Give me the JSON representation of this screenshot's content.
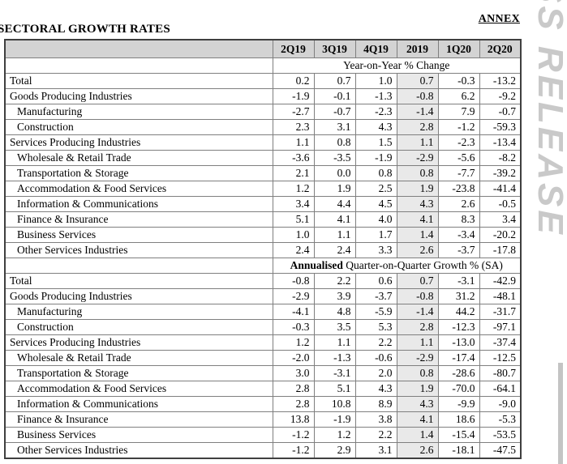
{
  "page": {
    "annex_label": "ANNEX",
    "title": "SECTORAL GROWTH RATES",
    "watermark_text": "SS RELEASE"
  },
  "colors": {
    "header_bg": "#d3d3d3",
    "annual_column_bg": "#e9e9e9",
    "grid_line": "#7f7f7f",
    "outer_border": "#3f3f3f",
    "watermark": "#c9c9c9"
  },
  "table": {
    "corner_label": "",
    "columns": [
      "2Q19",
      "3Q19",
      "4Q19",
      "2019",
      "1Q20",
      "2Q20"
    ],
    "shaded_column": "2019",
    "shaded_column_index": 3,
    "sections": [
      {
        "subtitle": {
          "bold": "",
          "text": "Year-on-Year % Change"
        },
        "rows": [
          {
            "label": "Total",
            "indent": false,
            "values": [
              "0.2",
              "0.7",
              "1.0",
              "0.7",
              "-0.3",
              "-13.2"
            ]
          },
          {
            "label": "Goods Producing Industries",
            "indent": false,
            "values": [
              "-1.9",
              "-0.1",
              "-1.3",
              "-0.8",
              "6.2",
              "-9.2"
            ]
          },
          {
            "label": "Manufacturing",
            "indent": true,
            "values": [
              "-2.7",
              "-0.7",
              "-2.3",
              "-1.4",
              "7.9",
              "-0.7"
            ]
          },
          {
            "label": "Construction",
            "indent": true,
            "values": [
              "2.3",
              "3.1",
              "4.3",
              "2.8",
              "-1.2",
              "-59.3"
            ]
          },
          {
            "label": "Services Producing Industries",
            "indent": false,
            "values": [
              "1.1",
              "0.8",
              "1.5",
              "1.1",
              "-2.3",
              "-13.4"
            ]
          },
          {
            "label": "Wholesale & Retail Trade",
            "indent": true,
            "values": [
              "-3.6",
              "-3.5",
              "-1.9",
              "-2.9",
              "-5.6",
              "-8.2"
            ]
          },
          {
            "label": "Transportation & Storage",
            "indent": true,
            "values": [
              "2.1",
              "0.0",
              "0.8",
              "0.8",
              "-7.7",
              "-39.2"
            ]
          },
          {
            "label": "Accommodation & Food Services",
            "indent": true,
            "values": [
              "1.2",
              "1.9",
              "2.5",
              "1.9",
              "-23.8",
              "-41.4"
            ]
          },
          {
            "label": "Information & Communications",
            "indent": true,
            "values": [
              "3.4",
              "4.4",
              "4.5",
              "4.3",
              "2.6",
              "-0.5"
            ]
          },
          {
            "label": "Finance & Insurance",
            "indent": true,
            "values": [
              "5.1",
              "4.1",
              "4.0",
              "4.1",
              "8.3",
              "3.4"
            ]
          },
          {
            "label": "Business Services",
            "indent": true,
            "values": [
              "1.0",
              "1.1",
              "1.7",
              "1.4",
              "-3.4",
              "-20.2"
            ]
          },
          {
            "label": "Other Services Industries",
            "indent": true,
            "values": [
              "2.4",
              "2.4",
              "3.3",
              "2.6",
              "-3.7",
              "-17.8"
            ]
          }
        ]
      },
      {
        "subtitle": {
          "bold": "Annualised",
          "text": " Quarter-on-Quarter Growth % (SA)"
        },
        "rows": [
          {
            "label": "Total",
            "indent": false,
            "values": [
              "-0.8",
              "2.2",
              "0.6",
              "0.7",
              "-3.1",
              "-42.9"
            ]
          },
          {
            "label": "Goods Producing Industries",
            "indent": false,
            "values": [
              "-2.9",
              "3.9",
              "-3.7",
              "-0.8",
              "31.2",
              "-48.1"
            ]
          },
          {
            "label": "Manufacturing",
            "indent": true,
            "values": [
              "-4.1",
              "4.8",
              "-5.9",
              "-1.4",
              "44.2",
              "-31.7"
            ]
          },
          {
            "label": "Construction",
            "indent": true,
            "values": [
              "-0.3",
              "3.5",
              "5.3",
              "2.8",
              "-12.3",
              "-97.1"
            ]
          },
          {
            "label": "Services Producing Industries",
            "indent": false,
            "values": [
              "1.2",
              "1.1",
              "2.2",
              "1.1",
              "-13.0",
              "-37.4"
            ]
          },
          {
            "label": "Wholesale & Retail Trade",
            "indent": true,
            "values": [
              "-2.0",
              "-1.3",
              "-0.6",
              "-2.9",
              "-17.4",
              "-12.5"
            ]
          },
          {
            "label": "Transportation & Storage",
            "indent": true,
            "values": [
              "3.0",
              "-3.1",
              "2.0",
              "0.8",
              "-28.6",
              "-80.7"
            ]
          },
          {
            "label": "Accommodation & Food Services",
            "indent": true,
            "values": [
              "2.8",
              "5.1",
              "4.3",
              "1.9",
              "-70.0",
              "-64.1"
            ]
          },
          {
            "label": "Information & Communications",
            "indent": true,
            "values": [
              "2.8",
              "10.8",
              "8.9",
              "4.3",
              "-9.9",
              "-9.0"
            ]
          },
          {
            "label": "Finance & Insurance",
            "indent": true,
            "values": [
              "13.8",
              "-1.9",
              "3.8",
              "4.1",
              "18.6",
              "-5.3"
            ]
          },
          {
            "label": "Business Services",
            "indent": true,
            "values": [
              "-1.2",
              "1.2",
              "2.2",
              "1.4",
              "-15.4",
              "-53.5"
            ]
          },
          {
            "label": "Other Services Industries",
            "indent": true,
            "values": [
              "-1.2",
              "2.9",
              "3.1",
              "2.6",
              "-18.1",
              "-47.5"
            ]
          }
        ]
      }
    ]
  }
}
